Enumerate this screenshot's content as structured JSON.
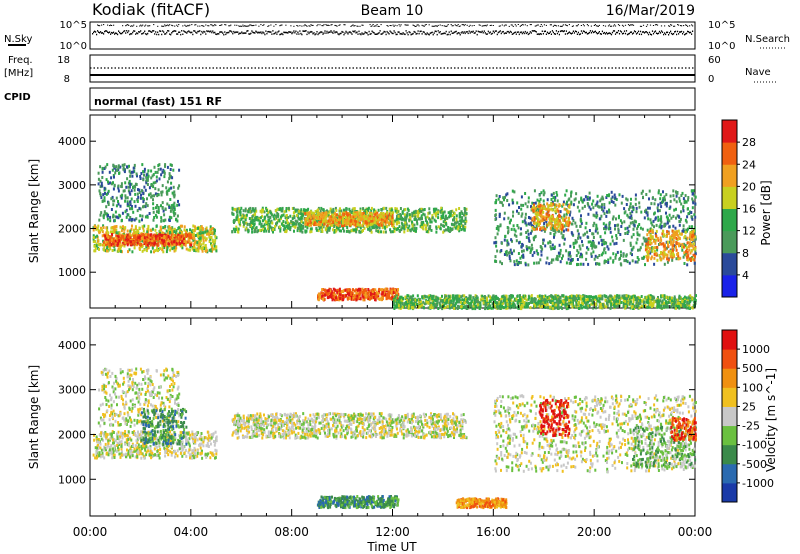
{
  "header": {
    "station": "Kodiak (fitACF)",
    "beam": "Beam 10",
    "date": "16/Mar/2019"
  },
  "top_panel": {
    "left_label": "N.Sky",
    "right_label": "N.Search",
    "left_ticks": [
      "10^5",
      "10^0"
    ],
    "right_ticks": [
      "10^5",
      "10^0"
    ]
  },
  "freq_panel": {
    "left_label_1": "Freq.",
    "left_label_2": "[MHz]",
    "right_label": "Nave",
    "left_ticks": [
      "18",
      "8"
    ],
    "right_ticks": [
      "60",
      "0"
    ]
  },
  "cpid": {
    "label": "CPID",
    "value": "normal (fast) 151 RF"
  },
  "x_axis": {
    "label": "Time UT",
    "ticks": [
      "00:00",
      "04:00",
      "08:00",
      "12:00",
      "16:00",
      "20:00",
      "00:00"
    ]
  },
  "chart_data": [
    {
      "type": "heatmap",
      "panel": "power",
      "ylabel": "Slant Range [km]",
      "y_ticks": [
        "1000",
        "2000",
        "3000",
        "4000"
      ],
      "ylim": [
        180,
        4600
      ],
      "xlim": [
        0,
        24
      ],
      "colorbar_label": "Power [dB]",
      "colorbar_ticks": [
        "4",
        "8",
        "12",
        "16",
        "20",
        "24",
        "28"
      ],
      "colorbar_colors": [
        "#1a22e8",
        "#2a4a9a",
        "#4a9a5a",
        "#2ea84a",
        "#c8d020",
        "#f0a020",
        "#f06010",
        "#e01818"
      ],
      "regions": [
        {
          "t0": 0.1,
          "t1": 5.0,
          "r0": 1500,
          "r1": 2100,
          "level": 4
        },
        {
          "t0": 0.5,
          "t1": 4.0,
          "r0": 1650,
          "r1": 1900,
          "level": 6
        },
        {
          "t0": 0.3,
          "t1": 3.5,
          "r0": 2200,
          "r1": 3500,
          "level": 2
        },
        {
          "t0": 5.6,
          "t1": 14.9,
          "r0": 1950,
          "r1": 2500,
          "level": 3
        },
        {
          "t0": 8.5,
          "t1": 12.0,
          "r0": 2100,
          "r1": 2400,
          "level": 5
        },
        {
          "t0": 9.0,
          "t1": 12.2,
          "r0": 400,
          "r1": 650,
          "level": 6
        },
        {
          "t0": 12.0,
          "t1": 24.0,
          "r0": 200,
          "r1": 500,
          "level": 3
        },
        {
          "t0": 16.0,
          "t1": 24.0,
          "r0": 1200,
          "r1": 2900,
          "level": 2
        },
        {
          "t0": 17.5,
          "t1": 19.0,
          "r0": 2000,
          "r1": 2600,
          "level": 5
        },
        {
          "t0": 22.0,
          "t1": 24.0,
          "r0": 1300,
          "r1": 2000,
          "level": 5
        }
      ]
    },
    {
      "type": "heatmap",
      "panel": "velocity",
      "ylabel": "Slant Range [km]",
      "y_ticks": [
        "1000",
        "2000",
        "3000",
        "4000"
      ],
      "ylim": [
        180,
        4600
      ],
      "xlim": [
        0,
        24
      ],
      "colorbar_label": "Velocity [m s^-1]",
      "colorbar_ticks": [
        "1000",
        "500",
        "100",
        "25",
        "-25",
        "-100",
        "-500",
        "-1000"
      ],
      "colorbar_colors": [
        "#1a3aa8",
        "#2a6ab0",
        "#3a8a4a",
        "#6ac040",
        "#c8c8c8",
        "#f0c020",
        "#f09010",
        "#f05010",
        "#e01010"
      ],
      "regions": [
        {
          "t0": 0.1,
          "t1": 5.0,
          "r0": 1500,
          "r1": 2100,
          "level": 4
        },
        {
          "t0": 0.3,
          "t1": 3.5,
          "r0": 2200,
          "r1": 3500,
          "level": 4
        },
        {
          "t0": 2.0,
          "t1": 3.8,
          "r0": 1800,
          "r1": 2600,
          "level": 2
        },
        {
          "t0": 5.6,
          "t1": 14.9,
          "r0": 1950,
          "r1": 2500,
          "level": 4
        },
        {
          "t0": 9.0,
          "t1": 12.2,
          "r0": 400,
          "r1": 650,
          "level": 2
        },
        {
          "t0": 14.5,
          "t1": 16.5,
          "r0": 400,
          "r1": 600,
          "level": 6
        },
        {
          "t0": 16.0,
          "t1": 24.0,
          "r0": 1200,
          "r1": 2900,
          "level": 4
        },
        {
          "t0": 17.8,
          "t1": 19.0,
          "r0": 2000,
          "r1": 2800,
          "level": 8
        },
        {
          "t0": 21.5,
          "t1": 24.0,
          "r0": 1300,
          "r1": 2200,
          "level": 3
        },
        {
          "t0": 23.0,
          "t1": 24.0,
          "r0": 1900,
          "r1": 2400,
          "level": 7
        }
      ]
    }
  ]
}
